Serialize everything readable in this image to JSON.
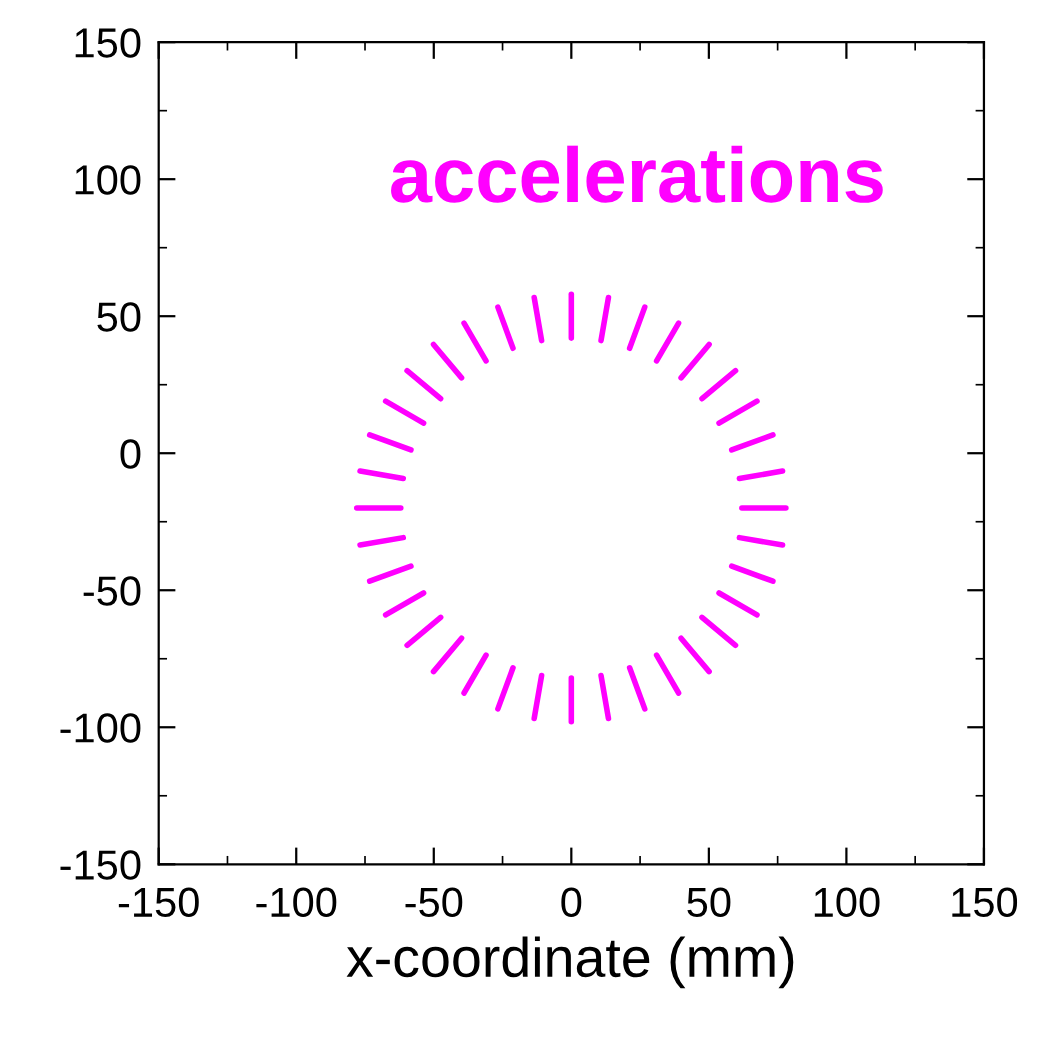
{
  "chart_data": {
    "type": "line",
    "xlabel": "x-coordinate (mm)",
    "annotations": [
      "accelerations"
    ],
    "xlim": [
      -150,
      150
    ],
    "ylim": [
      -150,
      150
    ],
    "xticks": [
      -150,
      -100,
      -50,
      0,
      50,
      100,
      150
    ],
    "yticks": [
      -150,
      -100,
      -50,
      0,
      50,
      100,
      150
    ],
    "grid": false,
    "legend": false,
    "line_style": "solid",
    "marker": "none",
    "series": [
      {
        "color": "#ff00ff",
        "x": [
          78,
          62
        ],
        "values": [
          -20,
          -20
        ]
      },
      {
        "color": "#ff00ff",
        "x": [
          76.8,
          61.1
        ],
        "values": [
          -6.5,
          -9.2
        ]
      },
      {
        "color": "#ff00ff",
        "x": [
          73.3,
          58.3
        ],
        "values": [
          6.7,
          1.2
        ]
      },
      {
        "color": "#ff00ff",
        "x": [
          67.5,
          53.7
        ],
        "values": [
          19,
          11
        ]
      },
      {
        "color": "#ff00ff",
        "x": [
          59.7,
          47.5
        ],
        "values": [
          30.1,
          19.9
        ]
      },
      {
        "color": "#ff00ff",
        "x": [
          50.1,
          39.9
        ],
        "values": [
          39.7,
          27.5
        ]
      },
      {
        "color": "#ff00ff",
        "x": [
          39,
          31
        ],
        "values": [
          47.5,
          33.7
        ]
      },
      {
        "color": "#ff00ff",
        "x": [
          26.7,
          21.2
        ],
        "values": [
          53.3,
          38.3
        ]
      },
      {
        "color": "#ff00ff",
        "x": [
          13.5,
          10.8
        ],
        "values": [
          56.8,
          41.1
        ]
      },
      {
        "color": "#ff00ff",
        "x": [
          0,
          0
        ],
        "values": [
          58,
          42
        ]
      },
      {
        "color": "#ff00ff",
        "x": [
          -13.5,
          -10.8
        ],
        "values": [
          56.8,
          41.1
        ]
      },
      {
        "color": "#ff00ff",
        "x": [
          -26.7,
          -21.2
        ],
        "values": [
          53.3,
          38.3
        ]
      },
      {
        "color": "#ff00ff",
        "x": [
          -39,
          -31
        ],
        "values": [
          47.5,
          33.7
        ]
      },
      {
        "color": "#ff00ff",
        "x": [
          -50.1,
          -39.9
        ],
        "values": [
          39.7,
          27.5
        ]
      },
      {
        "color": "#ff00ff",
        "x": [
          -59.7,
          -47.5
        ],
        "values": [
          30.1,
          19.9
        ]
      },
      {
        "color": "#ff00ff",
        "x": [
          -67.5,
          -53.7
        ],
        "values": [
          19,
          11
        ]
      },
      {
        "color": "#ff00ff",
        "x": [
          -73.3,
          -58.3
        ],
        "values": [
          6.7,
          1.2
        ]
      },
      {
        "color": "#ff00ff",
        "x": [
          -76.8,
          -61.1
        ],
        "values": [
          -6.5,
          -9.2
        ]
      },
      {
        "color": "#ff00ff",
        "x": [
          -78,
          -62
        ],
        "values": [
          -20,
          -20
        ]
      },
      {
        "color": "#ff00ff",
        "x": [
          -76.8,
          -61.1
        ],
        "values": [
          -33.5,
          -30.8
        ]
      },
      {
        "color": "#ff00ff",
        "x": [
          -73.3,
          -58.3
        ],
        "values": [
          -46.7,
          -41.2
        ]
      },
      {
        "color": "#ff00ff",
        "x": [
          -67.5,
          -53.7
        ],
        "values": [
          -59,
          -51
        ]
      },
      {
        "color": "#ff00ff",
        "x": [
          -59.7,
          -47.5
        ],
        "values": [
          -70.1,
          -59.9
        ]
      },
      {
        "color": "#ff00ff",
        "x": [
          -50.1,
          -39.9
        ],
        "values": [
          -79.7,
          -67.5
        ]
      },
      {
        "color": "#ff00ff",
        "x": [
          -39,
          -31
        ],
        "values": [
          -87.5,
          -73.7
        ]
      },
      {
        "color": "#ff00ff",
        "x": [
          -26.7,
          -21.2
        ],
        "values": [
          -93.3,
          -78.3
        ]
      },
      {
        "color": "#ff00ff",
        "x": [
          -13.5,
          -10.8
        ],
        "values": [
          -96.8,
          -81.1
        ]
      },
      {
        "color": "#ff00ff",
        "x": [
          0,
          0
        ],
        "values": [
          -98,
          -82
        ]
      },
      {
        "color": "#ff00ff",
        "x": [
          13.5,
          10.8
        ],
        "values": [
          -96.8,
          -81.1
        ]
      },
      {
        "color": "#ff00ff",
        "x": [
          26.7,
          21.2
        ],
        "values": [
          -93.3,
          -78.3
        ]
      },
      {
        "color": "#ff00ff",
        "x": [
          39,
          31
        ],
        "values": [
          -87.5,
          -73.7
        ]
      },
      {
        "color": "#ff00ff",
        "x": [
          50.1,
          39.9
        ],
        "values": [
          -79.7,
          -67.5
        ]
      },
      {
        "color": "#ff00ff",
        "x": [
          59.7,
          47.5
        ],
        "values": [
          -70.1,
          -59.9
        ]
      },
      {
        "color": "#ff00ff",
        "x": [
          67.5,
          53.7
        ],
        "values": [
          -59,
          -51
        ]
      },
      {
        "color": "#ff00ff",
        "x": [
          73.3,
          58.3
        ],
        "values": [
          -46.7,
          -41.2
        ]
      },
      {
        "color": "#ff00ff",
        "x": [
          76.8,
          61.1
        ],
        "values": [
          -33.5,
          -30.8
        ]
      }
    ]
  }
}
